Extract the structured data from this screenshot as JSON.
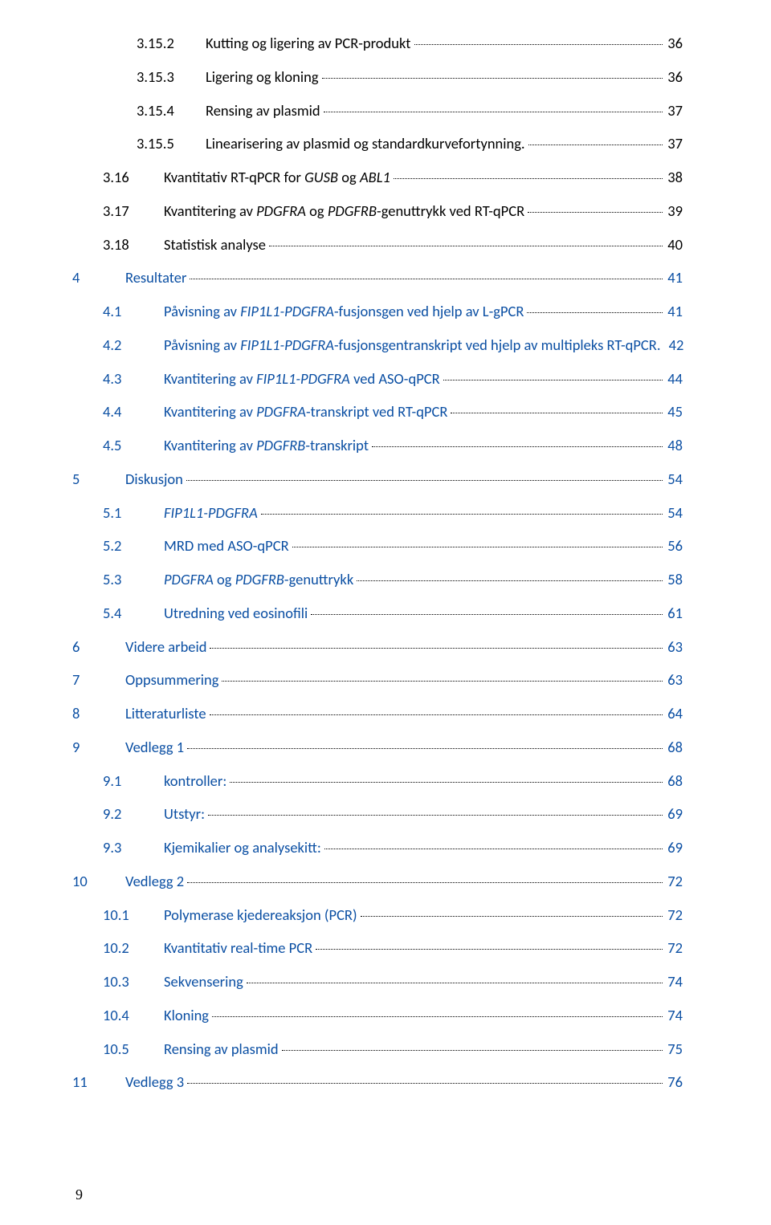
{
  "page_number": "9",
  "toc": [
    {
      "level": 3,
      "num": "3.15.2",
      "title": "Kutting og ligering av PCR-produkt",
      "page": "36",
      "link": false,
      "italic": false
    },
    {
      "level": 3,
      "num": "3.15.3",
      "title": "Ligering og kloning",
      "page": "36",
      "link": false,
      "italic": false
    },
    {
      "level": 3,
      "num": "3.15.4",
      "title": "Rensing av plasmid",
      "page": "37",
      "link": false,
      "italic": false
    },
    {
      "level": 3,
      "num": "3.15.5",
      "title": "Linearisering av plasmid og standardkurvefortynning.",
      "page": "37",
      "link": false,
      "italic": false
    },
    {
      "level": 2,
      "num": "3.16",
      "title_parts": [
        {
          "t": "Kvantitativ RT-qPCR for ",
          "italic": false
        },
        {
          "t": "GUSB",
          "italic": true
        },
        {
          "t": " og ",
          "italic": false
        },
        {
          "t": "ABL1",
          "italic": true
        }
      ],
      "page": "38",
      "link": false
    },
    {
      "level": 2,
      "num": "3.17",
      "title_parts": [
        {
          "t": "Kvantitering av ",
          "italic": false
        },
        {
          "t": "PDGFRA",
          "italic": true
        },
        {
          "t": " og ",
          "italic": false
        },
        {
          "t": "PDGFRB",
          "italic": true
        },
        {
          "t": "-genuttrykk ved RT-qPCR",
          "italic": false
        }
      ],
      "page": "39",
      "link": false
    },
    {
      "level": 2,
      "num": "3.18",
      "title": "Statistisk analyse",
      "page": "40",
      "link": false,
      "italic": false
    },
    {
      "level": 1,
      "num": "4",
      "title": "Resultater",
      "page": "41",
      "link": true,
      "italic": false
    },
    {
      "level": 2,
      "num": "4.1",
      "title_parts": [
        {
          "t": "Påvisning av ",
          "italic": false
        },
        {
          "t": "FIP1L1-PDGFRA",
          "italic": true
        },
        {
          "t": "-fusjonsgen ved hjelp av L-gPCR",
          "italic": false
        }
      ],
      "page": "41",
      "link": true
    },
    {
      "level": 2,
      "num": "4.2",
      "title_parts": [
        {
          "t": "Påvisning av ",
          "italic": false
        },
        {
          "t": "FIP1L1-PDGFRA",
          "italic": true
        },
        {
          "t": "-fusjonsgentranskript ved hjelp av multipleks RT-qPCR.",
          "italic": false
        }
      ],
      "page": "42",
      "link": true
    },
    {
      "level": 2,
      "num": "4.3",
      "title_parts": [
        {
          "t": "Kvantitering av ",
          "italic": false
        },
        {
          "t": "FIP1L1-PDGFRA",
          "italic": true
        },
        {
          "t": " ved ASO-qPCR",
          "italic": false
        }
      ],
      "page": "44",
      "link": true
    },
    {
      "level": 2,
      "num": "4.4",
      "title_parts": [
        {
          "t": "Kvantitering av ",
          "italic": false
        },
        {
          "t": "PDGFRA",
          "italic": true
        },
        {
          "t": "-transkript ved RT-qPCR",
          "italic": false
        }
      ],
      "page": "45",
      "link": true
    },
    {
      "level": 2,
      "num": "4.5",
      "title_parts": [
        {
          "t": "Kvantitering av ",
          "italic": false
        },
        {
          "t": "PDGFRB",
          "italic": true
        },
        {
          "t": "-transkript",
          "italic": false
        }
      ],
      "page": "48",
      "link": true
    },
    {
      "level": 1,
      "num": "5",
      "title": "Diskusjon",
      "page": "54",
      "link": true,
      "italic": false
    },
    {
      "level": 2,
      "num": "5.1",
      "title": "FIP1L1-PDGFRA",
      "page": "54",
      "link": true,
      "italic": true
    },
    {
      "level": 2,
      "num": "5.2",
      "title": "MRD med ASO-qPCR",
      "page": "56",
      "link": true,
      "italic": false
    },
    {
      "level": 2,
      "num": "5.3",
      "title_parts": [
        {
          "t": "PDGFRA",
          "italic": true
        },
        {
          "t": " og ",
          "italic": false
        },
        {
          "t": "PDGFRB",
          "italic": true
        },
        {
          "t": "-genuttrykk",
          "italic": false
        }
      ],
      "page": "58",
      "link": true
    },
    {
      "level": 2,
      "num": "5.4",
      "title": "Utredning ved eosinofili",
      "page": "61",
      "link": true,
      "italic": false
    },
    {
      "level": 1,
      "num": "6",
      "title": "Videre arbeid",
      "page": "63",
      "link": true,
      "italic": false
    },
    {
      "level": 1,
      "num": "7",
      "title": "Oppsummering",
      "page": "63",
      "link": true,
      "italic": false
    },
    {
      "level": 1,
      "num": "8",
      "title": "Litteraturliste",
      "page": "64",
      "link": true,
      "italic": false
    },
    {
      "level": 1,
      "num": "9",
      "title": "Vedlegg 1",
      "page": "68",
      "link": true,
      "italic": false
    },
    {
      "level": 2,
      "num": "9.1",
      "title": "kontroller:",
      "page": "68",
      "link": true,
      "italic": false
    },
    {
      "level": 2,
      "num": "9.2",
      "title": "Utstyr:",
      "page": "69",
      "link": true,
      "italic": false
    },
    {
      "level": 2,
      "num": "9.3",
      "title": "Kjemikalier og analysekitt:",
      "page": "69",
      "link": true,
      "italic": false
    },
    {
      "level": 1,
      "num": "10",
      "title": "Vedlegg 2",
      "page": "72",
      "link": true,
      "italic": false
    },
    {
      "level": 2,
      "num": "10.1",
      "title": "Polymerase kjedereaksjon (PCR)",
      "page": "72",
      "link": true,
      "italic": false
    },
    {
      "level": 2,
      "num": "10.2",
      "title": "Kvantitativ real-time PCR",
      "page": "72",
      "link": true,
      "italic": false
    },
    {
      "level": 2,
      "num": "10.3",
      "title": "Sekvensering",
      "page": "74",
      "link": true,
      "italic": false
    },
    {
      "level": 2,
      "num": "10.4",
      "title": "Kloning",
      "page": "74",
      "link": true,
      "italic": false
    },
    {
      "level": 2,
      "num": "10.5",
      "title": "Rensing av plasmid",
      "page": "75",
      "link": true,
      "italic": false
    },
    {
      "level": 1,
      "num": "11",
      "title": "Vedlegg 3",
      "page": "76",
      "link": true,
      "italic": false
    }
  ]
}
